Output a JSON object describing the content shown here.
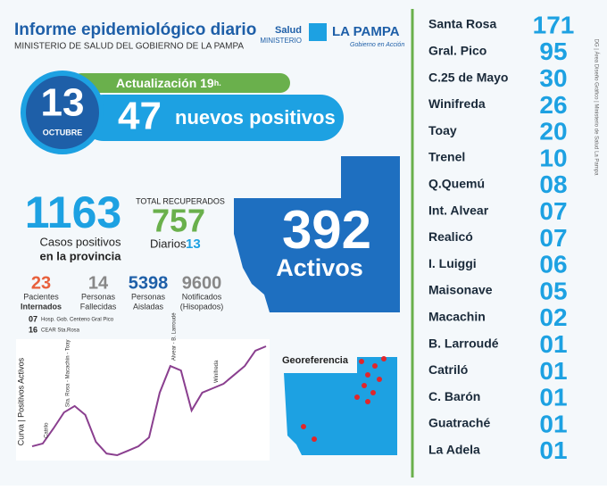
{
  "header": {
    "title": "Informe epidemiológico diario",
    "subtitle": "MINISTERIO DE SALUD DEL GOBIERNO DE LA PAMPA",
    "logo": {
      "salud": "Salud",
      "ministerio": "MINISTERIO",
      "province": "LA PAMPA",
      "motto": "Gobierno en Acción"
    }
  },
  "date": {
    "day": "13",
    "month": "OCTUBRE"
  },
  "update": {
    "label": "Actualización 19",
    "hour_suffix": "h."
  },
  "new_positives": {
    "value": "47",
    "label": "nuevos positivos"
  },
  "cases": {
    "value": "1163",
    "label_1": "Casos positivos",
    "label_2": "en la provincia"
  },
  "recovered": {
    "label": "TOTAL RECUPERADOS",
    "value": "757",
    "daily_label": "Diarios",
    "daily_value": "13"
  },
  "active": {
    "value": "392",
    "label": "Activos"
  },
  "stats": [
    {
      "value": "23",
      "label_1": "Pacientes",
      "label_2": "Internados"
    },
    {
      "value": "14",
      "label_1": "Personas",
      "label_2": "Fallecidas"
    },
    {
      "value": "5398",
      "label_1": "Personas",
      "label_2": "Aisladas"
    },
    {
      "value": "9600",
      "label_1": "Notificados",
      "label_2": "(Hisopados)"
    }
  ],
  "hospitals": [
    {
      "value": "07",
      "name": "Hosp. Gob. Centeno Gral Pico"
    },
    {
      "value": "16",
      "name": "CEAR Sta.Rosa"
    }
  ],
  "curve": {
    "label": "Curva | Positivos Activos",
    "values": [
      32,
      42,
      96,
      154,
      177,
      145,
      48,
      6,
      0,
      16,
      32,
      64,
      225,
      321,
      305,
      161,
      225,
      241,
      257,
      289,
      321,
      376,
      392
    ],
    "annotations": [
      {
        "text": "Catrilo",
        "index": 1
      },
      {
        "text": "Sta. Rosa - Macachín - Toay",
        "index": 3
      },
      {
        "text": "Alvear - B. Larroudé",
        "index": 13
      },
      {
        "text": "Winifreda",
        "index": 17
      }
    ]
  },
  "georeferencia": "Georeferencia",
  "localities": [
    {
      "name": "Santa Rosa",
      "count": "171"
    },
    {
      "name": "Gral. Pico",
      "count": "95"
    },
    {
      "name": "C.25 de Mayo",
      "count": "30"
    },
    {
      "name": "Winifreda",
      "count": "26"
    },
    {
      "name": "Toay",
      "count": "20"
    },
    {
      "name": "Trenel",
      "count": "10"
    },
    {
      "name": "Q.Quemú",
      "count": "08"
    },
    {
      "name": "Int. Alvear",
      "count": "07"
    },
    {
      "name": "Realicó",
      "count": "07"
    },
    {
      "name": "I. Luiggi",
      "count": "06"
    },
    {
      "name": "Maisonave",
      "count": "05"
    },
    {
      "name": "Macachin",
      "count": "02"
    },
    {
      "name": "B. Larroudé",
      "count": "01"
    },
    {
      "name": "Catriló",
      "count": "01"
    },
    {
      "name": "C. Barón",
      "count": "01"
    },
    {
      "name": "Guatraché",
      "count": "01"
    },
    {
      "name": "La Adela",
      "count": "01"
    }
  ],
  "credit": "DG | Área Diseño Gráfico | Ministerio de Salud La Pampa"
}
